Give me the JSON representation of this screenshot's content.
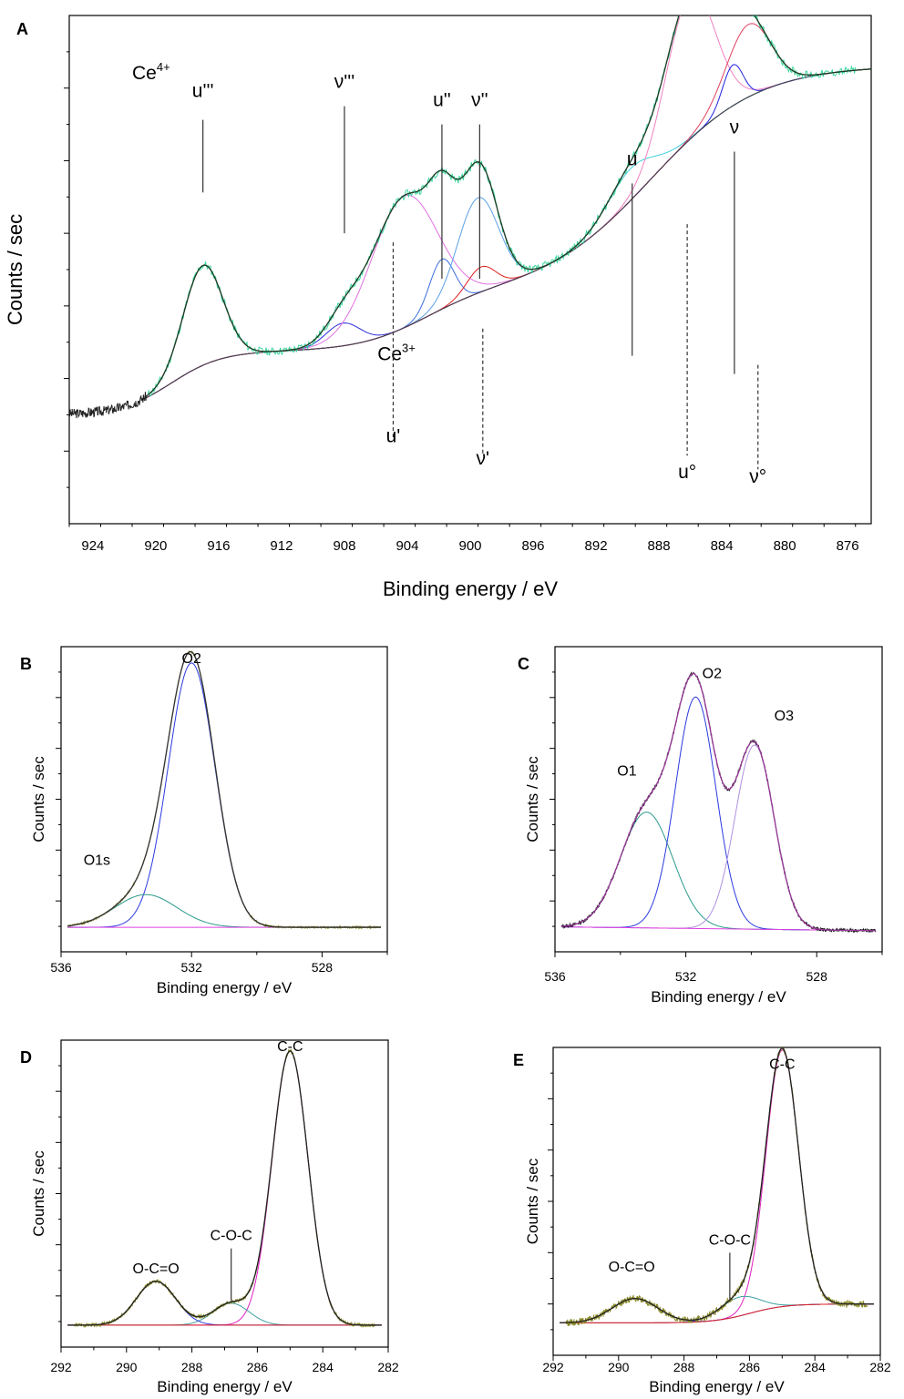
{
  "chart_data": [
    {
      "panel": "A",
      "type": "line",
      "xlabel": "Binding energy / eV",
      "ylabel": "Counts / sec",
      "xlim": [
        925.5,
        874.5
      ],
      "ylim": [
        0,
        100
      ],
      "xticks": [
        924,
        920,
        916,
        912,
        908,
        904,
        900,
        896,
        892,
        888,
        884,
        880,
        876
      ],
      "state_labels": [
        {
          "base": "Ce",
          "sup": "4+",
          "x": 921.5,
          "y": 92
        },
        {
          "base": "Ce",
          "sup": "3+",
          "x": 905.9,
          "y": 30
        }
      ],
      "peak_labels": [
        {
          "text": "u'''",
          "x": 917.0,
          "line_from": 83,
          "line_to": 67,
          "dashed": false,
          "label_y": 88
        },
        {
          "text": "ν'''",
          "x": 908.0,
          "line_from": 86,
          "line_to": 58,
          "dashed": false,
          "label_y": 90
        },
        {
          "text": "u''",
          "x": 901.8,
          "line_from": 82,
          "line_to": 48,
          "dashed": false,
          "label_y": 86
        },
        {
          "text": "ν''",
          "x": 899.4,
          "line_from": 82,
          "line_to": 48,
          "dashed": false,
          "label_y": 86
        },
        {
          "text": "u",
          "x": 889.7,
          "line_from": 69,
          "line_to": 31,
          "dashed": false,
          "label_y": 73
        },
        {
          "text": "ν",
          "x": 883.2,
          "line_from": 76,
          "line_to": 27,
          "dashed": false,
          "label_y": 80
        },
        {
          "text": "u'",
          "x": 904.9,
          "line_from": 56,
          "line_to": 13,
          "dashed": true,
          "label_y": 12
        },
        {
          "text": "ν'",
          "x": 899.2,
          "line_from": 37,
          "line_to": 9,
          "dashed": true,
          "label_y": 7
        },
        {
          "text": "u°",
          "x": 886.2,
          "line_from": 60,
          "line_to": 9,
          "dashed": true,
          "label_y": 4
        },
        {
          "text": "ν°",
          "x": 881.7,
          "line_from": 29,
          "line_to": 6,
          "dashed": true,
          "label_y": 3
        }
      ],
      "series": [
        {
          "name": "raw data",
          "color": "#3bd6a0"
        },
        {
          "name": "envelope fit",
          "color": "#1f3a22"
        },
        {
          "name": "background",
          "color": "#444444"
        },
        {
          "name": "u''' component",
          "color": "#1f3a22"
        },
        {
          "name": "ν''' component",
          "color": "#2a2ad8"
        },
        {
          "name": "u'' component (broad)",
          "color": "#e070e0"
        },
        {
          "name": "u'' component",
          "color": "#3b6fe0"
        },
        {
          "name": "ν'' component",
          "color": "#5aa0e8"
        },
        {
          "name": "ν' component",
          "color": "#e02020"
        },
        {
          "name": "u component",
          "color": "#40d0e0"
        },
        {
          "name": "u° component",
          "color": "#f080c0"
        },
        {
          "name": "ν component",
          "color": "#2020e0"
        },
        {
          "name": "ν° component",
          "color": "#e04060"
        }
      ]
    },
    {
      "panel": "B",
      "type": "line",
      "xlabel": "Binding energy / eV",
      "ylabel": "Counts / sec",
      "xlim": [
        536,
        526
      ],
      "ylim": [
        0,
        100
      ],
      "xticks": [
        536,
        532,
        528
      ],
      "peak_labels": [
        {
          "text": "O2",
          "x": 532.0,
          "y": 97
        },
        {
          "text": "O1s",
          "x": 534.9,
          "y": 23
        }
      ],
      "series": [
        {
          "name": "raw data",
          "color": "#8a8a2a"
        },
        {
          "name": "envelope fit",
          "color": "#333333"
        },
        {
          "name": "O2 component",
          "color": "#2a3ae0"
        },
        {
          "name": "O1s component",
          "color": "#2a9a8a"
        },
        {
          "name": "background",
          "color": "#e040e0"
        }
      ]
    },
    {
      "panel": "C",
      "type": "line",
      "xlabel": "Binding energy / eV",
      "ylabel": "Counts / sec",
      "xlim": [
        536,
        526
      ],
      "ylim": [
        0,
        100
      ],
      "xticks": [
        536,
        532,
        528
      ],
      "peak_labels": [
        {
          "text": "O1",
          "x": 533.8,
          "y": 59
        },
        {
          "text": "O2",
          "x": 531.2,
          "y": 96
        },
        {
          "text": "O3",
          "x": 529.0,
          "y": 80
        }
      ],
      "series": [
        {
          "name": "raw data",
          "color": "#111111"
        },
        {
          "name": "envelope fit",
          "color": "#9a3a9a"
        },
        {
          "name": "O1 component",
          "color": "#2a9a8a"
        },
        {
          "name": "O2 component",
          "color": "#2a3ae0"
        },
        {
          "name": "O3 component",
          "color": "#b090e0"
        },
        {
          "name": "background",
          "color": "#e040e0"
        }
      ]
    },
    {
      "panel": "D",
      "type": "line",
      "xlabel": "Binding energy / eV",
      "ylabel": "Counts / sec",
      "xlim": [
        292,
        282
      ],
      "ylim": [
        0,
        100
      ],
      "xticks": [
        292,
        290,
        288,
        286,
        284,
        282
      ],
      "peak_labels": [
        {
          "text": "C-C",
          "x": 285.0,
          "y": 100
        },
        {
          "text": "C-O-C",
          "x": 286.8,
          "y": 31,
          "line_from": 28,
          "line_to": 9
        },
        {
          "text": "O-C=O",
          "x": 289.1,
          "y": 19
        }
      ],
      "series": [
        {
          "name": "raw data",
          "color": "#8a8a2a"
        },
        {
          "name": "envelope fit",
          "color": "#222222"
        },
        {
          "name": "C-C component",
          "color": "#e020c0"
        },
        {
          "name": "C-O-C component",
          "color": "#40a0a0"
        },
        {
          "name": "O-C=O component",
          "color": "#2a3ae0"
        },
        {
          "name": "background",
          "color": "#e02020"
        }
      ]
    },
    {
      "panel": "E",
      "type": "line",
      "xlabel": "Binding energy / eV",
      "ylabel": "Counts / sec",
      "xlim": [
        292,
        282
      ],
      "ylim": [
        0,
        100
      ],
      "xticks": [
        292,
        290,
        288,
        286,
        284,
        282
      ],
      "peak_labels": [
        {
          "text": "C-C",
          "x": 285.0,
          "y": 98
        },
        {
          "text": "C-O-C",
          "x": 286.6,
          "y": 33,
          "line_from": 30,
          "line_to": 12
        },
        {
          "text": "O-C=O",
          "x": 289.6,
          "y": 23
        }
      ],
      "series": [
        {
          "name": "raw data",
          "color": "#8a8a2a"
        },
        {
          "name": "envelope fit",
          "color": "#222222"
        },
        {
          "name": "C-C component",
          "color": "#e020c0"
        },
        {
          "name": "C-O-C component",
          "color": "#40a0a0"
        },
        {
          "name": "O-C=O component",
          "color": "#2a3ae0"
        },
        {
          "name": "background",
          "color": "#e02020"
        }
      ]
    }
  ]
}
